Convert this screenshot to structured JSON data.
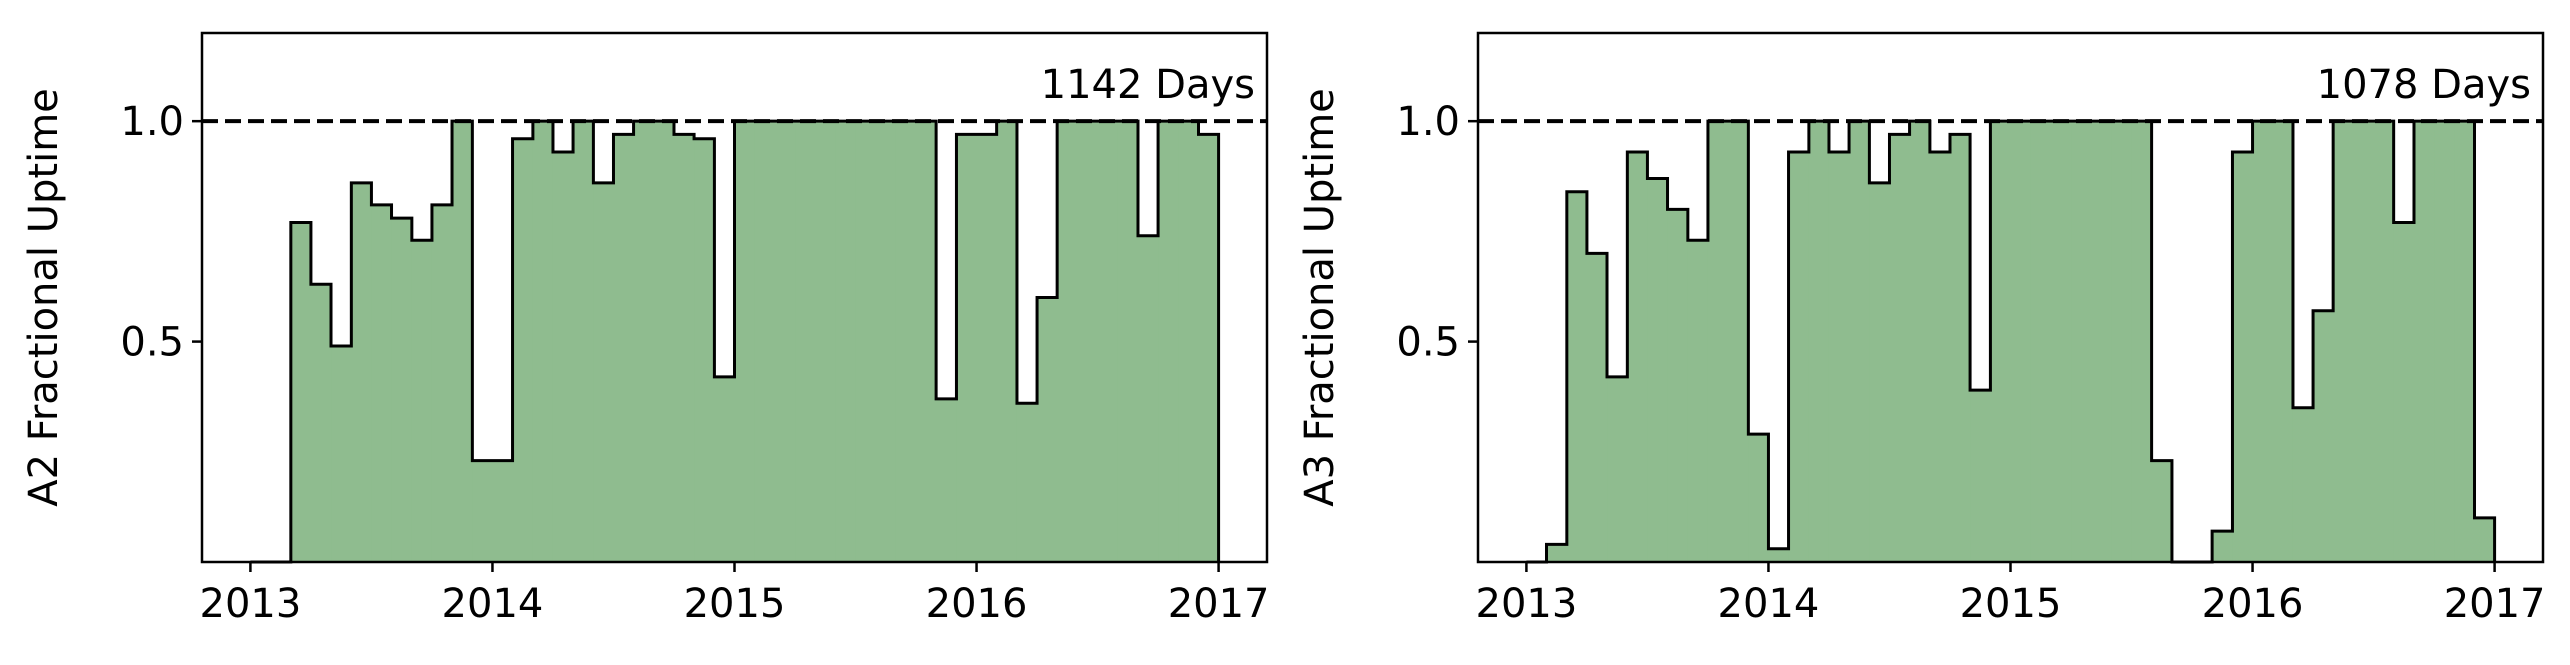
{
  "colors": {
    "fill": "#8fbc8f",
    "edge": "#000000",
    "reference_line": "#000000",
    "background": "#ffffff"
  },
  "chart_data": [
    {
      "type": "step-area",
      "title": "",
      "ylabel": "A2 Fractional Uptime",
      "xlabel": "",
      "annotation": "1142 Days",
      "xlim": [
        2012.8,
        2017.2
      ],
      "ylim": [
        0.0,
        1.2
      ],
      "xticks": [
        2013,
        2014,
        2015,
        2016,
        2017
      ],
      "xtick_labels": [
        "2013",
        "2014",
        "2015",
        "2016",
        "2017"
      ],
      "yticks": [
        0.5,
        1.0
      ],
      "ytick_labels": [
        "0.5",
        "1.0"
      ],
      "reference_line": {
        "y": 1.0,
        "style": "dashed"
      },
      "grid": false,
      "bin_edges": [
        2013.0,
        2013.083,
        2013.167,
        2013.25,
        2013.333,
        2013.417,
        2013.5,
        2013.583,
        2013.667,
        2013.75,
        2013.833,
        2013.917,
        2014.0,
        2014.083,
        2014.167,
        2014.25,
        2014.333,
        2014.417,
        2014.5,
        2014.583,
        2014.667,
        2014.75,
        2014.833,
        2014.917,
        2015.0,
        2015.083,
        2015.167,
        2015.25,
        2015.333,
        2015.417,
        2015.5,
        2015.583,
        2015.667,
        2015.75,
        2015.833,
        2015.917,
        2016.0,
        2016.083,
        2016.167,
        2016.25,
        2016.333,
        2016.417,
        2016.5,
        2016.583,
        2016.667,
        2016.75,
        2016.833,
        2016.917,
        2017.0
      ],
      "values": [
        0.0,
        0.0,
        0.77,
        0.63,
        0.49,
        0.86,
        0.81,
        0.78,
        0.73,
        0.81,
        1.0,
        0.23,
        0.23,
        0.96,
        1.0,
        0.93,
        1.0,
        0.86,
        0.97,
        1.0,
        1.0,
        0.97,
        0.96,
        0.42,
        1.0,
        1.0,
        1.0,
        1.0,
        1.0,
        1.0,
        1.0,
        1.0,
        1.0,
        1.0,
        0.37,
        0.97,
        0.97,
        1.0,
        0.36,
        0.6,
        1.0,
        1.0,
        1.0,
        1.0,
        0.74,
        1.0,
        1.0,
        0.97
      ]
    },
    {
      "type": "step-area",
      "title": "",
      "ylabel": "A3 Fractional Uptime",
      "xlabel": "",
      "annotation": "1078 Days",
      "xlim": [
        2012.8,
        2017.2
      ],
      "ylim": [
        0.0,
        1.2
      ],
      "xticks": [
        2013,
        2014,
        2015,
        2016,
        2017
      ],
      "xtick_labels": [
        "2013",
        "2014",
        "2015",
        "2016",
        "2017"
      ],
      "yticks": [
        0.5,
        1.0
      ],
      "ytick_labels": [
        "0.5",
        "1.0"
      ],
      "reference_line": {
        "y": 1.0,
        "style": "dashed"
      },
      "grid": false,
      "bin_edges": [
        2013.0,
        2013.083,
        2013.167,
        2013.25,
        2013.333,
        2013.417,
        2013.5,
        2013.583,
        2013.667,
        2013.75,
        2013.833,
        2013.917,
        2014.0,
        2014.083,
        2014.167,
        2014.25,
        2014.333,
        2014.417,
        2014.5,
        2014.583,
        2014.667,
        2014.75,
        2014.833,
        2014.917,
        2015.0,
        2015.083,
        2015.167,
        2015.25,
        2015.333,
        2015.417,
        2015.5,
        2015.583,
        2015.667,
        2015.75,
        2015.833,
        2015.917,
        2016.0,
        2016.083,
        2016.167,
        2016.25,
        2016.333,
        2016.417,
        2016.5,
        2016.583,
        2016.667,
        2016.75,
        2016.833,
        2016.917,
        2017.0
      ],
      "values": [
        0.0,
        0.04,
        0.84,
        0.7,
        0.42,
        0.93,
        0.87,
        0.8,
        0.73,
        1.0,
        1.0,
        0.29,
        0.03,
        0.93,
        1.0,
        0.93,
        1.0,
        0.86,
        0.97,
        1.0,
        0.93,
        0.97,
        0.39,
        1.0,
        1.0,
        1.0,
        1.0,
        1.0,
        1.0,
        1.0,
        1.0,
        0.23,
        0.0,
        0.0,
        0.07,
        0.93,
        1.0,
        1.0,
        0.35,
        0.57,
        1.0,
        1.0,
        1.0,
        0.77,
        1.0,
        1.0,
        1.0,
        0.1
      ]
    }
  ]
}
